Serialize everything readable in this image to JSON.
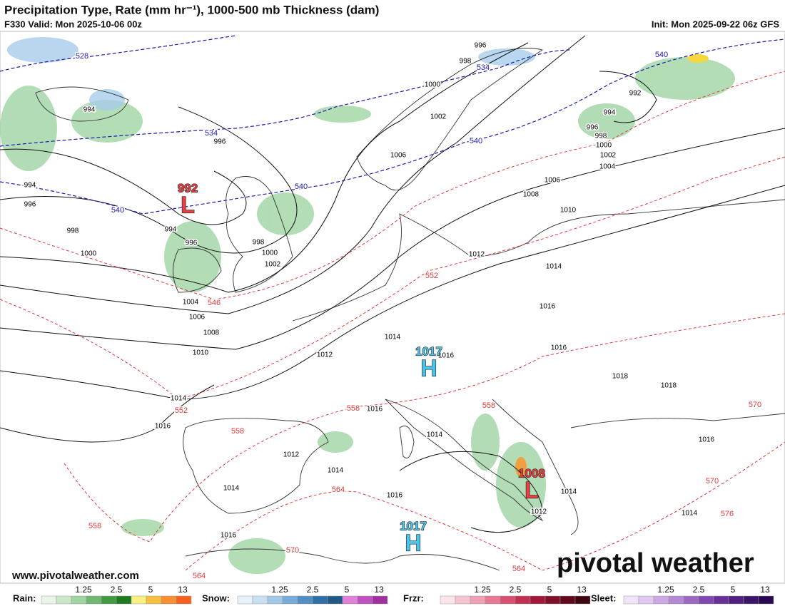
{
  "header": {
    "title": "Precipitation Type, Rate (mm hr⁻¹), 1000-500 mb Thickness (dam)",
    "valid": "F330 Valid: Mon 2025-10-06 00z",
    "init": "Init: Mon 2025-09-22 06z GFS"
  },
  "isobar_labels": [
    996,
    998,
    1000,
    1002,
    1006,
    994,
    996,
    994,
    996,
    998,
    1000,
    994,
    996,
    998,
    1000,
    1002,
    1004,
    1006,
    1008,
    1010,
    1014,
    1012,
    1016,
    1016,
    1012,
    1014,
    1016,
    1008,
    1006,
    1010,
    992,
    994,
    996,
    998,
    1000,
    1002,
    1004,
    1018,
    1018,
    1014,
    1016,
    1016,
    1014,
    1012,
    1014,
    1014,
    1016,
    1014,
    1012,
    1014,
    1016,
    1016
  ],
  "thickness_colors": {
    "cold": "#1a1ab0",
    "warm": "#e23a3a"
  },
  "thickness_cold_labels": [
    528,
    534,
    534,
    540,
    540,
    540,
    540
  ],
  "thickness_warm_labels": [
    546,
    552,
    552,
    558,
    558,
    558,
    564,
    564,
    564,
    570,
    570,
    576,
    570,
    558
  ],
  "pressure_centers": [
    {
      "value": 992,
      "symbol": "L"
    },
    {
      "value": 1008,
      "symbol": "L"
    },
    {
      "value": 1017,
      "symbol": "H"
    },
    {
      "value": 1017,
      "symbol": "H"
    }
  ],
  "legend": [
    {
      "label": "Rain:",
      "ticks": [
        1.25,
        2.5,
        5,
        13
      ]
    },
    {
      "label": "Snow:",
      "ticks": [
        1.25,
        2.5,
        5,
        13
      ]
    },
    {
      "label": "Frzr:",
      "ticks": [
        1.25,
        2.5,
        5,
        13
      ]
    },
    {
      "label": "Sleet:",
      "ticks": [
        1.25,
        2.5,
        5,
        13
      ]
    }
  ],
  "footer": {
    "url": "www.pivotalweather.com",
    "logo": "pivotal weather"
  }
}
